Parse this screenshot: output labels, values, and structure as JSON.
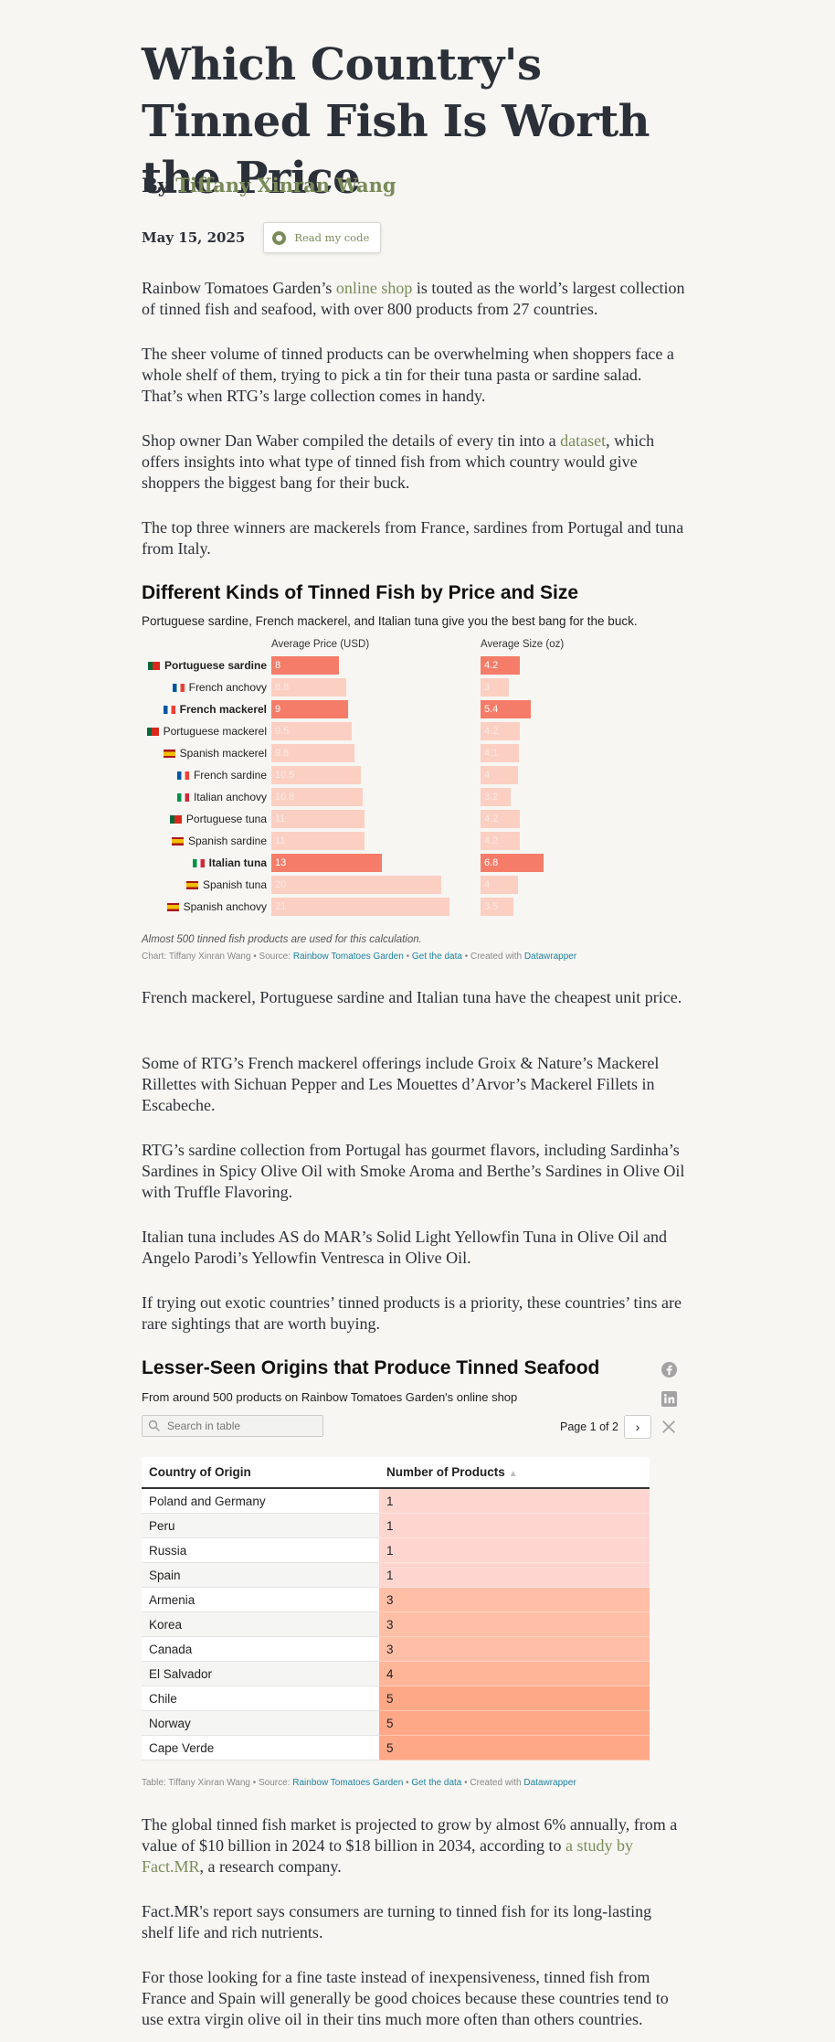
{
  "article": {
    "title": "Which Country's Tinned Fish Is Worth the Price",
    "by_prefix": "By",
    "author": "Tiffany Xinran Wang",
    "date": "May 15, 2025",
    "code_button": "Read my code"
  },
  "paragraphs": {
    "p1_a": "Rainbow Tomatoes Garden’s ",
    "p1_link": "online shop",
    "p1_b": " is touted as the world’s largest collection of tinned fish and seafood, with over 800 products from 27 countries.",
    "p2": "The sheer volume of tinned products can be overwhelming when shoppers face a whole shelf of them, trying to pick a tin for their tuna pasta or sardine salad. That’s when RTG’s large collection comes in handy.",
    "p3_a": "Shop owner Dan Waber compiled the details of every tin into a ",
    "p3_link": "dataset",
    "p3_b": ", which offers insights into what type of tinned fish from which country would give shoppers the biggest bang for their buck.",
    "p4": "The top three winners are mackerels from France, sardines from Portugal and tuna from Italy.",
    "p5": "French mackerel, Portuguese sardine and Italian tuna have the cheapest unit price.",
    "p6": "Some of RTG’s French mackerel offerings include Groix & Nature’s Mackerel Rillettes with Sichuan Pepper and Les Mouettes d’Arvor’s Mackerel Fillets in Escabeche.",
    "p7": "RTG’s sardine collection from Portugal has gourmet flavors, including Sardinha’s Sardines in Spicy Olive Oil with Smoke Aroma and Berthe’s Sardines in Olive Oil with Truffle Flavoring.",
    "p8": "Italian tuna includes AS do MAR’s Solid Light Yellowfin Tuna in Olive Oil and Angelo Parodi’s Yellowfin Ventresca in Olive Oil.",
    "p9": "If trying out exotic countries’ tinned products is a priority, these countries’ tins are rare sightings that are worth buying.",
    "p10_a": "The global tinned fish market is projected to grow by almost 6% annually, from a value of $10 billion in 2024 to $18 billion in 2034, according to ",
    "p10_link": "a study by Fact.MR",
    "p10_b": ", a research company.",
    "p11": "Fact.MR's report says consumers are turning to tinned fish for its long-lasting shelf life and rich nutrients.",
    "p12": "For those looking for a fine taste instead of inexpensiveness, tinned fish from France and Spain will generally be good choices because these countries tend to use extra virgin olive oil in their tins much more often than others countries."
  },
  "chart_data": {
    "type": "bar",
    "title": "Different Kinds of Tinned Fish by Price and Size",
    "subtitle": "Portuguese sardine, French mackerel, and Italian tuna give you the best bang for the buck.",
    "categories": [
      "Portuguese sardine",
      "French anchovy",
      "French mackerel",
      "Portuguese mackerel",
      "Spanish mackerel",
      "French sardine",
      "Italian anchovy",
      "Portuguese tuna",
      "Spanish sardine",
      "Italian tuna",
      "Spanish tuna",
      "Spanish anchovy"
    ],
    "flags": [
      "portugal-flag",
      "france-flag",
      "france-flag",
      "portugal-flag",
      "spain-flag",
      "france-flag",
      "italy-flag",
      "portugal-flag",
      "spain-flag",
      "italy-flag",
      "spain-flag",
      "spain-flag"
    ],
    "highlighted": [
      true,
      false,
      true,
      false,
      false,
      false,
      false,
      false,
      false,
      true,
      false,
      false
    ],
    "series": [
      {
        "name": "Average Price (USD)",
        "values": [
          8,
          8.8,
          9,
          9.5,
          9.8,
          10.5,
          10.8,
          11,
          11,
          13,
          20,
          21
        ],
        "labels": [
          "8",
          "8.8",
          "9",
          "9.5",
          "9.8",
          "10.5",
          "10.8",
          "11",
          "11",
          "13",
          "20",
          "21"
        ]
      },
      {
        "name": "Average Size (oz)",
        "values": [
          4.2,
          3,
          5.4,
          4.2,
          4.1,
          4,
          3.2,
          4.2,
          4.2,
          6.8,
          4,
          3.5
        ],
        "labels": [
          "4.2",
          "3",
          "5.4",
          "4.2",
          "4.1",
          "4",
          "3.2",
          "4.2",
          "4.2",
          "6.8",
          "4",
          "3.5"
        ]
      }
    ],
    "colors": {
      "highlight": "#f47c68",
      "muted": "#fccfc3",
      "muted_text": "#f9e9e4"
    },
    "note": "Almost 500 tinned fish products are used for this calculation.",
    "credit_a": "Chart: Tiffany Xinran Wang • Source: ",
    "credit_source": "Rainbow Tomatoes Garden",
    "credit_sep": " • ",
    "credit_data": "Get the data",
    "credit_b": " • Created with ",
    "credit_tool": "Datawrapper"
  },
  "table": {
    "title": "Lesser-Seen Origins that Produce Tinned Seafood",
    "subtitle": "From around 500 products on Rainbow Tomatoes Garden's online shop",
    "search_placeholder": "Search in table",
    "pager": "Page 1 of 2",
    "next": "›",
    "sort_icon": "▲",
    "col1": "Country of Origin",
    "col2": "Number of Products",
    "rows": [
      {
        "country": "Poland and Germany",
        "count": "1"
      },
      {
        "country": "Peru",
        "count": "1"
      },
      {
        "country": "Russia",
        "count": "1"
      },
      {
        "country": "Spain",
        "count": "1"
      },
      {
        "country": "Armenia",
        "count": "3"
      },
      {
        "country": "Korea",
        "count": "3"
      },
      {
        "country": "Canada",
        "count": "3"
      },
      {
        "country": "El Salvador",
        "count": "4"
      },
      {
        "country": "Chile",
        "count": "5"
      },
      {
        "country": "Norway",
        "count": "5"
      },
      {
        "country": "Cape Verde",
        "count": "5"
      }
    ],
    "heat_colors": {
      "1": "#fed6cf",
      "3": "#ffbfa6",
      "4": "#ffb597",
      "5": "#ffa887"
    },
    "credit_a": "Table: Tiffany Xinran Wang • Source: ",
    "credit_source": "Rainbow Tomatoes Garden",
    "credit_sep": " • ",
    "credit_data": "Get the data",
    "credit_b": " • Created with ",
    "credit_tool": "Datawrapper",
    "share_icons": [
      "facebook-icon",
      "linkedin-icon",
      "x-icon"
    ]
  },
  "flag_colors": {
    "portugal-flag": [
      "#046a38",
      "#da291c"
    ],
    "france-flag": [
      "#0055a4",
      "#ffffff",
      "#ef4135"
    ],
    "italy-flag": [
      "#009246",
      "#ffffff",
      "#ce2b37"
    ],
    "spain-flag": [
      "#aa151b",
      "#f1bf00",
      "#aa151b"
    ]
  }
}
